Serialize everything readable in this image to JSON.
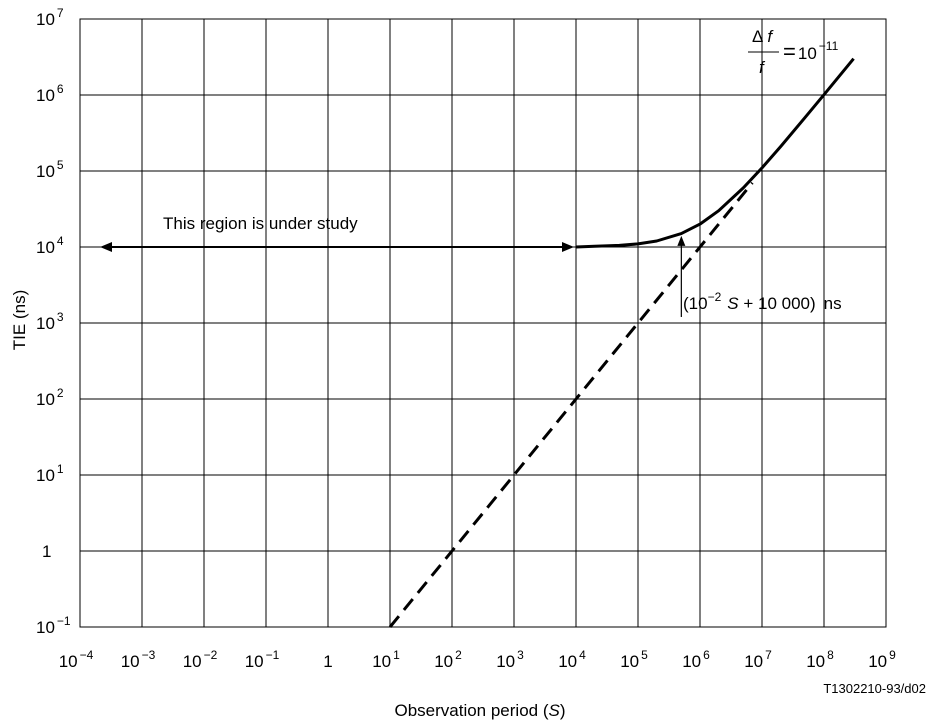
{
  "chart_data": {
    "type": "line",
    "x_scale": "log",
    "y_scale": "log",
    "xlim": [
      0.0001,
      1000000000
    ],
    "ylim": [
      0.1,
      10000000
    ],
    "grid": true,
    "xlabel": {
      "text": "Observation period (",
      "var": "S",
      "close": ")"
    },
    "ylabel": "TIE (ns)",
    "x_ticks": [
      {
        "base": "10",
        "exp": "−4"
      },
      {
        "base": "10",
        "exp": "−3"
      },
      {
        "base": "10",
        "exp": "−2"
      },
      {
        "base": "10",
        "exp": "−1"
      },
      {
        "base": "1",
        "exp": ""
      },
      {
        "base": "10",
        "exp": "1"
      },
      {
        "base": "10",
        "exp": "2"
      },
      {
        "base": "10",
        "exp": "3"
      },
      {
        "base": "10",
        "exp": "4"
      },
      {
        "base": "10",
        "exp": "5"
      },
      {
        "base": "10",
        "exp": "6"
      },
      {
        "base": "10",
        "exp": "7"
      },
      {
        "base": "10",
        "exp": "8"
      },
      {
        "base": "10",
        "exp": "9"
      }
    ],
    "y_ticks": [
      {
        "base": "10",
        "exp": "−1"
      },
      {
        "base": "1",
        "exp": ""
      },
      {
        "base": "10",
        "exp": "1"
      },
      {
        "base": "10",
        "exp": "2"
      },
      {
        "base": "10",
        "exp": "3"
      },
      {
        "base": "10",
        "exp": "4"
      },
      {
        "base": "10",
        "exp": "5"
      },
      {
        "base": "10",
        "exp": "6"
      },
      {
        "base": "10",
        "exp": "7"
      }
    ],
    "series": [
      {
        "style": "solid",
        "thick": true,
        "x": [
          10000,
          20000,
          50000,
          100000,
          200000,
          500000,
          1000000,
          2000000,
          5000000,
          10000000,
          20000000,
          50000000,
          100000000,
          300000000
        ],
        "y": [
          10000,
          10200,
          10500,
          11000,
          12000,
          15000,
          20000,
          30000,
          60000,
          110000,
          210000,
          510000,
          1010000,
          3000000
        ]
      },
      {
        "style": "dashed",
        "thick": true,
        "x": [
          10,
          7000000
        ],
        "y": [
          0.1,
          70000
        ]
      }
    ],
    "annotations": {
      "region_text": "This region is under study",
      "region_arrow_x": [
        0.0001,
        10000
      ],
      "region_arrow_y": 10000,
      "formula": {
        "open": "(10",
        "exp": "−2",
        "var": "S",
        "rest": " + 10 000)",
        "unit": "ns"
      },
      "ratio": {
        "num_delta": "Δ",
        "num_var": "f",
        "den_var": "f",
        "eq": "=",
        "base": "10",
        "exp": "−11"
      },
      "pointer": {
        "x": 500000,
        "y_from": 1200,
        "y_to": 14000
      }
    },
    "figure_id": "T1302210-93/d02"
  }
}
